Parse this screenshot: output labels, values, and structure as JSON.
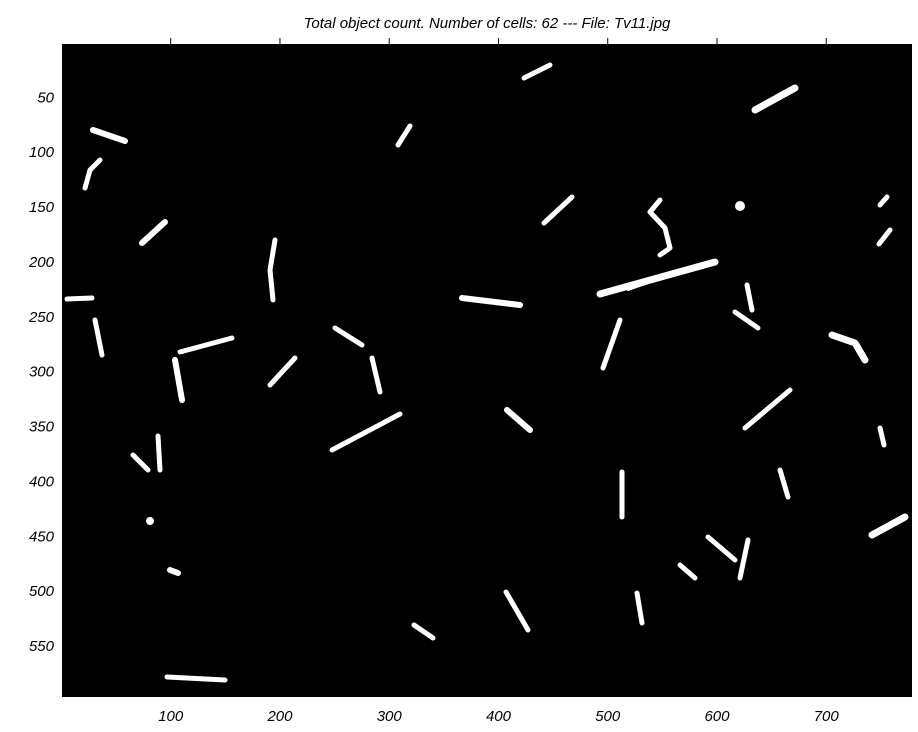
{
  "chart_data": {
    "type": "image",
    "title": "Total object count. Number of cells: 62   ---   File: Tv11.jpg",
    "xlim": [
      0.5,
      778.5
    ],
    "ylim": [
      0.5,
      595.5
    ],
    "y_direction": "reverse",
    "xticks": [
      100,
      200,
      300,
      400,
      500,
      600,
      700
    ],
    "yticks": [
      50,
      100,
      150,
      200,
      250,
      300,
      350,
      400,
      450,
      500,
      550
    ],
    "background": "#000000",
    "object_color": "#ffffff"
  }
}
